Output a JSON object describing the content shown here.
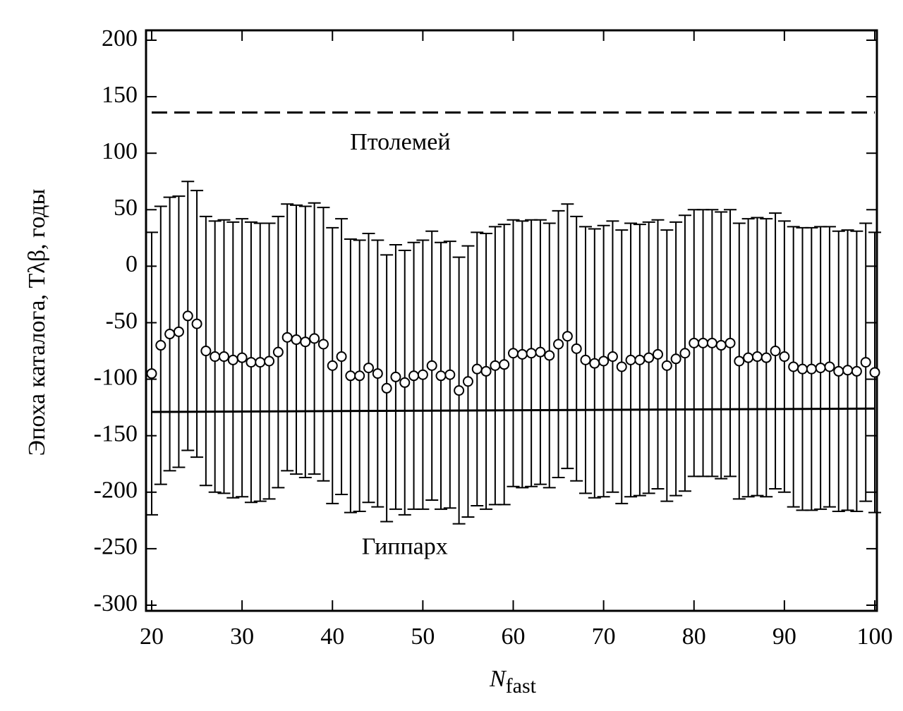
{
  "chart_data": {
    "type": "scatter",
    "ylabel": "Эпоха каталога, Tλβ, годы",
    "xlabel": {
      "main": "N",
      "sub": "fast"
    },
    "x": [
      20,
      21,
      22,
      23,
      24,
      25,
      26,
      27,
      28,
      29,
      30,
      31,
      32,
      33,
      34,
      35,
      36,
      37,
      38,
      39,
      40,
      41,
      42,
      43,
      44,
      45,
      46,
      47,
      48,
      49,
      50,
      51,
      52,
      53,
      54,
      55,
      56,
      57,
      58,
      59,
      60,
      61,
      62,
      63,
      64,
      65,
      66,
      67,
      68,
      69,
      70,
      71,
      72,
      73,
      74,
      75,
      76,
      77,
      78,
      79,
      80,
      81,
      82,
      83,
      84,
      85,
      86,
      87,
      88,
      89,
      90,
      91,
      92,
      93,
      94,
      95,
      96,
      97,
      98,
      99,
      100
    ],
    "series": [
      {
        "color": "#000000",
        "values": [
          -95,
          -70,
          -60,
          -58,
          -44,
          -51,
          -75,
          -80,
          -80,
          -83,
          -81,
          -85,
          -85,
          -84,
          -76,
          -63,
          -65,
          -67,
          -64,
          -69,
          -88,
          -80,
          -97,
          -97,
          -90,
          -95,
          -108,
          -98,
          -103,
          -97,
          -96,
          -88,
          -97,
          -96,
          -110,
          -102,
          -91,
          -93,
          -88,
          -87,
          -77,
          -78,
          -77,
          -76,
          -79,
          -69,
          -62,
          -73,
          -83,
          -86,
          -84,
          -80,
          -89,
          -83,
          -83,
          -81,
          -78,
          -88,
          -82,
          -77,
          -68,
          -68,
          -68,
          -70,
          -68,
          -84,
          -81,
          -80,
          -81,
          -75,
          -80,
          -89,
          -91,
          -91,
          -90,
          -89,
          -93,
          -92,
          -93,
          -85,
          -94
        ],
        "errors": [
          125,
          123,
          121,
          120,
          119,
          118,
          119,
          120,
          121,
          122,
          123,
          124,
          123,
          122,
          120,
          118,
          119,
          120,
          120,
          121,
          122,
          122,
          121,
          120,
          119,
          118,
          118,
          117,
          117,
          118,
          119,
          119,
          118,
          118,
          118,
          120,
          121,
          122,
          123,
          124,
          118,
          118,
          118,
          117,
          117,
          118,
          117,
          117,
          118,
          119,
          120,
          120,
          121,
          121,
          120,
          120,
          119,
          120,
          121,
          122,
          118,
          118,
          118,
          118,
          118,
          122,
          123,
          123,
          123,
          122,
          120,
          124,
          125,
          125,
          125,
          124,
          124,
          124,
          124,
          123,
          124
        ]
      }
    ],
    "reference_lines": [
      {
        "label": "Птолемей",
        "y": [
          136,
          136
        ],
        "style": "dashed",
        "label_pos": [
          47.5,
          108
        ]
      },
      {
        "label": "Гиппарх",
        "y": [
          -129,
          -126
        ],
        "style": "solid",
        "label_pos": [
          48,
          -250
        ]
      }
    ],
    "xlim": [
      20,
      100
    ],
    "ylim": [
      -300,
      200
    ],
    "xticks": [
      20,
      30,
      40,
      50,
      60,
      70,
      80,
      90,
      100
    ],
    "yticks": [
      200,
      150,
      100,
      50,
      0,
      -50,
      -100,
      -150,
      -200,
      -250,
      -300
    ]
  }
}
